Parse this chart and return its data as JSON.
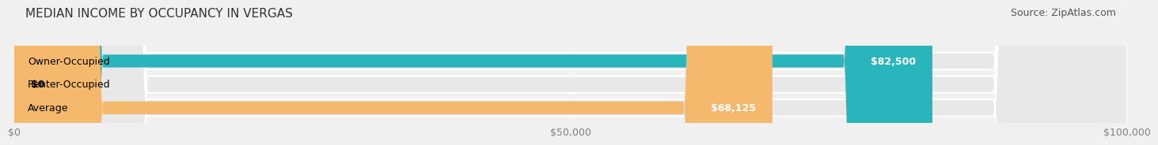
{
  "title": "MEDIAN INCOME BY OCCUPANCY IN VERGAS",
  "source": "Source: ZipAtlas.com",
  "categories": [
    "Owner-Occupied",
    "Renter-Occupied",
    "Average"
  ],
  "values": [
    82500,
    0,
    68125
  ],
  "bar_colors": [
    "#2ab5bc",
    "#b8a0c8",
    "#f5b96e"
  ],
  "bar_labels": [
    "$82,500",
    "$0",
    "$68,125"
  ],
  "xlim": [
    0,
    100000
  ],
  "xticks": [
    0,
    50000,
    100000
  ],
  "xtick_labels": [
    "$0",
    "$50,000",
    "$100,000"
  ],
  "background_color": "#f0f0f0",
  "bar_bg_color": "#e8e8e8",
  "title_fontsize": 11,
  "source_fontsize": 9,
  "label_fontsize": 9,
  "tick_fontsize": 9
}
